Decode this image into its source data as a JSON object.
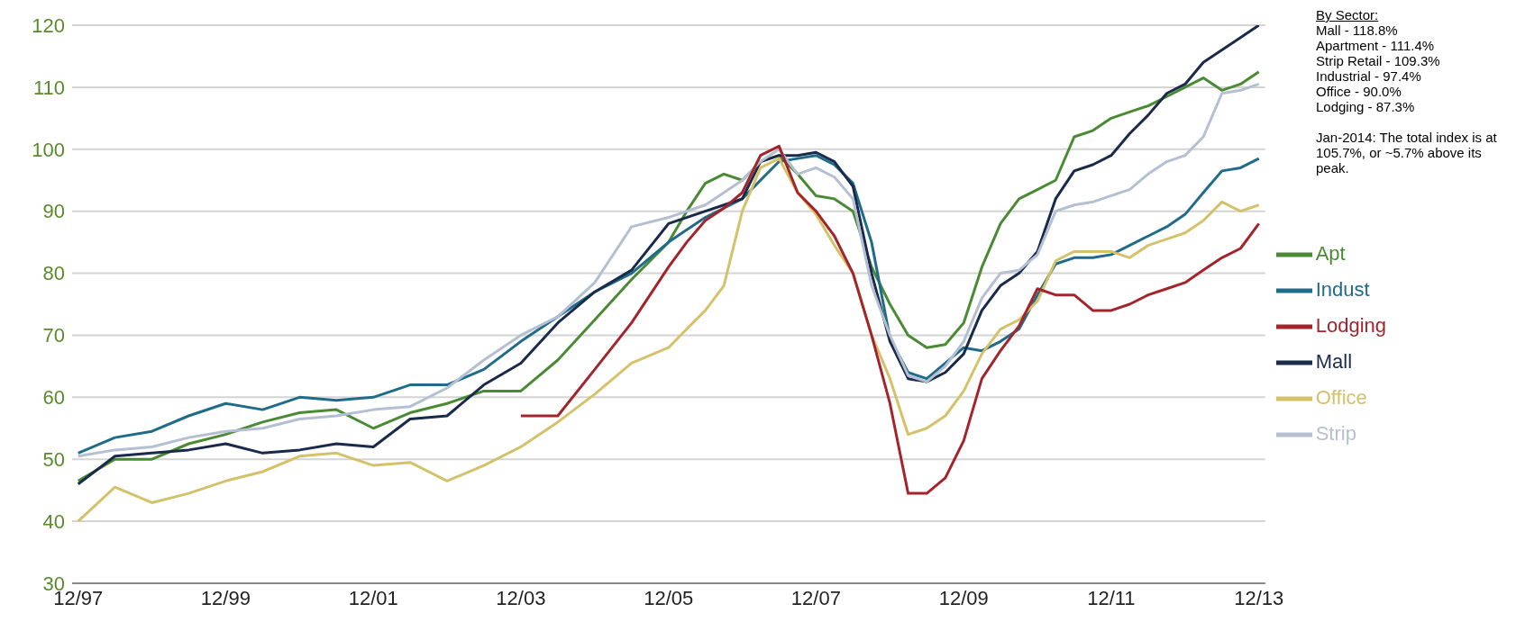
{
  "chart_data": {
    "type": "line",
    "x": [
      "1997-12",
      "1998-06",
      "1998-12",
      "1999-06",
      "1999-12",
      "2000-06",
      "2000-12",
      "2001-06",
      "2001-12",
      "2002-06",
      "2002-12",
      "2003-06",
      "2003-12",
      "2004-06",
      "2004-12",
      "2005-06",
      "2005-12",
      "2006-03",
      "2006-06",
      "2006-09",
      "2006-12",
      "2007-03",
      "2007-06",
      "2007-09",
      "2007-12",
      "2008-03",
      "2008-06",
      "2008-09",
      "2008-12",
      "2009-03",
      "2009-06",
      "2009-09",
      "2009-12",
      "2010-03",
      "2010-06",
      "2010-09",
      "2010-12",
      "2011-03",
      "2011-06",
      "2011-09",
      "2011-12",
      "2012-03",
      "2012-06",
      "2012-09",
      "2012-12",
      "2013-03",
      "2013-06",
      "2013-09",
      "2013-12"
    ],
    "series": [
      {
        "name": "Apt",
        "color": "#4a8a35",
        "values": [
          46.5,
          50,
          50,
          52.5,
          54,
          56,
          57.5,
          58,
          55,
          57.5,
          59,
          61,
          61,
          66,
          72.5,
          79,
          85,
          90,
          94.5,
          96,
          95,
          98,
          99,
          96,
          92.5,
          92,
          90,
          81,
          75,
          70,
          68,
          68.5,
          72,
          81,
          88,
          92,
          93.5,
          95,
          102,
          103,
          105,
          106,
          107,
          108.5,
          110,
          111.5,
          109.5,
          110.5,
          112.5
        ]
      },
      {
        "name": "Indust",
        "color": "#1f6b8a",
        "values": [
          51,
          53.5,
          54.5,
          57,
          59,
          58,
          60,
          59.5,
          60,
          62,
          62,
          64.5,
          69,
          73,
          77,
          80,
          85,
          87,
          89,
          90.5,
          92,
          95,
          98,
          98.5,
          99,
          97.5,
          94.5,
          85,
          69.5,
          64,
          63,
          65.5,
          68,
          67.5,
          69,
          71,
          76.5,
          81.5,
          82.5,
          82.5,
          83,
          84.5,
          86,
          87.5,
          89.5,
          93,
          96.5,
          97,
          98.5
        ]
      },
      {
        "name": "Mall",
        "color": "#1a2a4a",
        "values": [
          46,
          50.5,
          51,
          51.5,
          52.5,
          51,
          51.5,
          52.5,
          52,
          56.5,
          57,
          62,
          65.5,
          72,
          77,
          80.5,
          88,
          89,
          90,
          91,
          92,
          98,
          99,
          99,
          99.5,
          98,
          94,
          80,
          69,
          63,
          62.5,
          64,
          67,
          74,
          78,
          80,
          83.5,
          92,
          96.5,
          97.5,
          99,
          102.5,
          105.5,
          109,
          110.5,
          114,
          116,
          118,
          120
        ]
      },
      {
        "name": "Office",
        "color": "#d4c26a",
        "values": [
          40,
          45.5,
          43,
          44.5,
          46.5,
          48,
          50.5,
          51,
          49,
          49.5,
          46.5,
          49,
          52,
          56,
          60.5,
          65.5,
          68,
          71,
          74,
          78,
          90,
          97,
          98.5,
          93,
          89.5,
          84.5,
          80,
          70,
          63,
          54,
          55,
          57,
          61,
          67,
          71,
          72.5,
          75.5,
          82,
          83.5,
          83.5,
          83.5,
          82.5,
          84.5,
          85.5,
          86.5,
          88.5,
          91.5,
          90,
          91
        ]
      },
      {
        "name": "Strip",
        "color": "#b4bfd2",
        "values": [
          50.5,
          51.5,
          52,
          53.5,
          54.5,
          55,
          56.5,
          57,
          58,
          58.5,
          61.5,
          66,
          70,
          73,
          78.5,
          87.5,
          89,
          90,
          91,
          93,
          95,
          98,
          100,
          96,
          97,
          95.5,
          92,
          78,
          70,
          63.5,
          62.5,
          65,
          69,
          76,
          80,
          80.5,
          83,
          90,
          91,
          91.5,
          92.5,
          93.5,
          96,
          98,
          99,
          102,
          109,
          109.5,
          110.5
        ]
      },
      {
        "name": "Lodging",
        "color": "#a3242c",
        "values": [
          null,
          null,
          null,
          null,
          null,
          null,
          null,
          null,
          null,
          null,
          null,
          null,
          57,
          57,
          64.5,
          72,
          81,
          85,
          88.5,
          90.5,
          93,
          99,
          100.5,
          93,
          90,
          86,
          80,
          70,
          59,
          44.5,
          44.5,
          47,
          53,
          63,
          67.5,
          71.5,
          77.5,
          76.5,
          76.5,
          74,
          74,
          75,
          76.5,
          77.5,
          78.5,
          80.5,
          82.5,
          84,
          88
        ]
      }
    ],
    "xlim": [
      "1997-11",
      "2014-01"
    ],
    "xticks": [
      {
        "value": "1997-12",
        "label": "12/97"
      },
      {
        "value": "1999-12",
        "label": "12/99"
      },
      {
        "value": "2001-12",
        "label": "12/01"
      },
      {
        "value": "2003-12",
        "label": "12/03"
      },
      {
        "value": "2005-12",
        "label": "12/05"
      },
      {
        "value": "2007-12",
        "label": "12/07"
      },
      {
        "value": "2009-12",
        "label": "12/09"
      },
      {
        "value": "2011-12",
        "label": "12/11"
      },
      {
        "value": "2013-12",
        "label": "12/13"
      }
    ],
    "ylim": [
      30,
      120
    ],
    "yticks": [
      30,
      40,
      50,
      60,
      70,
      80,
      90,
      100,
      110,
      120
    ],
    "grid": "y",
    "legend": "right",
    "marker": "none",
    "line_style": "solid",
    "annotations": [
      "By Sector:",
      "Mall - 118.8%",
      "Apartment - 111.4%",
      "Strip Retail - 109.3%",
      "Industrial - 97.4%",
      "Office - 90.0%",
      "Lodging - 87.3%",
      "Jan-2014: The total index is at 105.7%, or ~5.7% above its peak."
    ]
  }
}
